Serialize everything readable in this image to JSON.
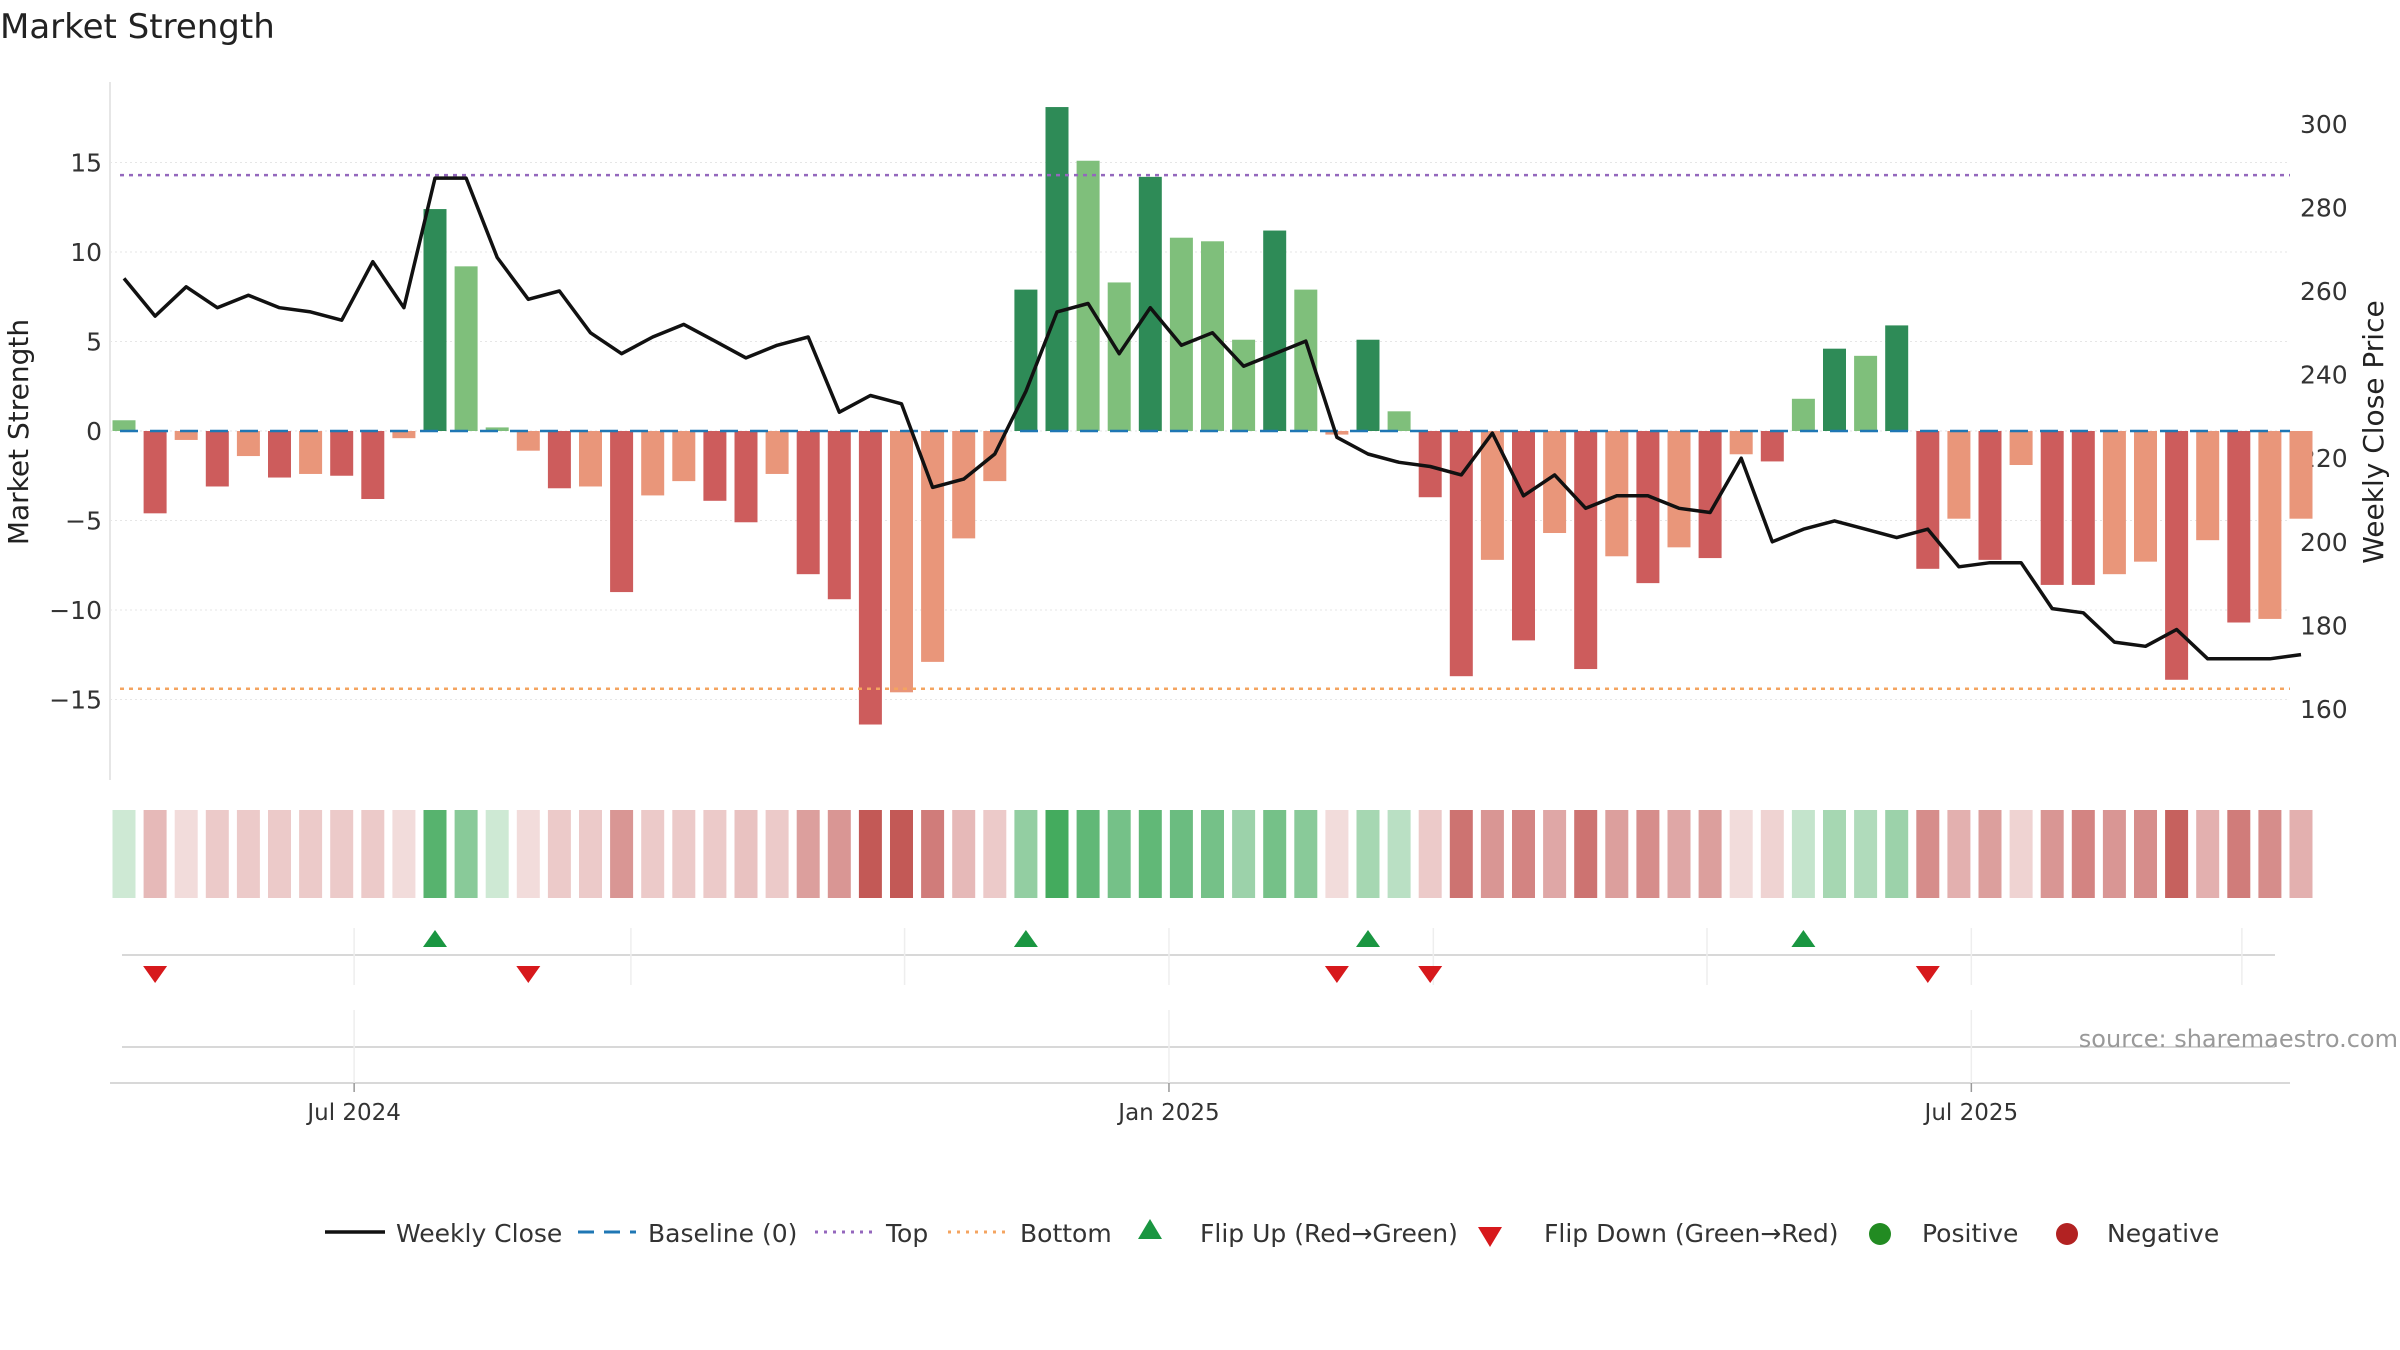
{
  "chart_data": {
    "type": "bar",
    "title": "Market Strength",
    "ylabel": "Market Strength",
    "y2label": "Weekly Close Price",
    "ylim": [
      -19.5,
      19.5
    ],
    "y2lim": [
      143,
      310
    ],
    "yticks": [
      15,
      10,
      5,
      0,
      -5,
      -10,
      -15
    ],
    "ytick_labels": [
      "15",
      "10",
      "5",
      "0",
      "−5",
      "−10",
      "−15"
    ],
    "y2ticks": [
      160,
      180,
      200,
      220,
      240,
      260,
      280,
      300
    ],
    "top_line": 14.3,
    "bottom_line": -14.4,
    "x_ticks": [
      {
        "label": "Jul 2024",
        "week": 7.4
      },
      {
        "label": "Jan 2025",
        "week": 33.6
      },
      {
        "label": "Jul 2025",
        "week": 59.4
      }
    ],
    "strength": [
      0.6,
      -4.6,
      -0.5,
      -3.1,
      -1.4,
      -2.6,
      -2.4,
      -2.5,
      -3.8,
      -0.4,
      12.4,
      9.2,
      0.2,
      -1.1,
      -3.2,
      -3.1,
      -9.0,
      -3.6,
      -2.8,
      -3.9,
      -5.1,
      -2.4,
      -8.0,
      -9.4,
      -16.4,
      -14.6,
      -12.9,
      -6.0,
      -2.8,
      7.9,
      18.1,
      15.1,
      8.3,
      14.2,
      10.8,
      10.6,
      5.1,
      11.2,
      7.9,
      -0.2,
      5.1,
      1.1,
      -3.7,
      -13.7,
      -7.2,
      -11.7,
      -5.7,
      -13.3,
      -7.0,
      -8.5,
      -6.5,
      -7.1,
      -1.3,
      -1.7,
      1.8,
      4.6,
      4.2,
      5.9,
      -7.7,
      -4.9,
      -7.2,
      -1.9,
      -8.6,
      -8.6,
      -8.0,
      -7.3,
      -13.9,
      -6.1,
      -10.7,
      -10.5,
      -4.9
    ],
    "close": [
      263,
      254,
      261,
      256,
      259,
      256,
      255,
      253,
      267,
      256,
      287,
      287,
      268,
      258,
      260,
      250,
      245,
      249,
      252,
      248,
      244,
      247,
      249,
      231,
      235,
      233,
      213,
      215,
      221,
      236,
      255,
      257,
      245,
      256,
      247,
      250,
      242,
      245,
      248,
      225,
      221,
      219,
      218,
      216,
      226,
      211,
      216,
      208,
      211,
      211,
      208,
      207,
      220,
      200,
      203,
      205,
      203,
      201,
      203,
      194,
      195,
      195,
      184,
      183,
      176,
      175,
      179,
      172,
      172,
      172,
      173
    ],
    "heat_alpha": [
      0.25,
      0.4,
      0.2,
      0.3,
      0.3,
      0.3,
      0.3,
      0.3,
      0.3,
      0.2,
      0.85,
      0.6,
      0.25,
      0.2,
      0.3,
      0.3,
      0.6,
      0.3,
      0.3,
      0.3,
      0.35,
      0.3,
      0.55,
      0.6,
      0.95,
      0.95,
      0.75,
      0.4,
      0.3,
      0.55,
      0.95,
      0.8,
      0.7,
      0.8,
      0.75,
      0.7,
      0.5,
      0.7,
      0.6,
      0.2,
      0.45,
      0.35,
      0.3,
      0.8,
      0.6,
      0.7,
      0.5,
      0.8,
      0.55,
      0.65,
      0.5,
      0.55,
      0.2,
      0.25,
      0.3,
      0.45,
      0.4,
      0.5,
      0.65,
      0.45,
      0.55,
      0.25,
      0.6,
      0.7,
      0.6,
      0.65,
      0.9,
      0.45,
      0.75,
      0.65,
      0.45
    ],
    "flip_up_weeks": [
      10,
      29,
      40,
      54
    ],
    "flip_down_weeks": [
      1,
      13,
      39,
      42,
      58
    ],
    "legend": {
      "weekly_close": "Weekly Close",
      "baseline": "Baseline (0)",
      "top": "Top",
      "bottom": "Bottom",
      "flip_up": "Flip Up (Red→Green)",
      "flip_down": "Flip Down (Green→Red)",
      "positive": "Positive",
      "negative": "Negative"
    },
    "source": "source: sharemaestro.com"
  },
  "colors": {
    "pos_strong": "#2e8b57",
    "pos_weak": "#7fbf7b",
    "neg_strong": "#cd5c5c",
    "neg_weak": "#e9967a",
    "heat_pos": "#3aa655",
    "heat_neg": "#c0504d",
    "top_line": "#9467bd",
    "bottom_line": "#f4a460",
    "baseline": "#1f77b4",
    "close_line": "#111111",
    "flip_up": "#1a9641",
    "flip_down": "#d7191c",
    "positive_dot": "#228b22",
    "negative_dot": "#b22222"
  }
}
